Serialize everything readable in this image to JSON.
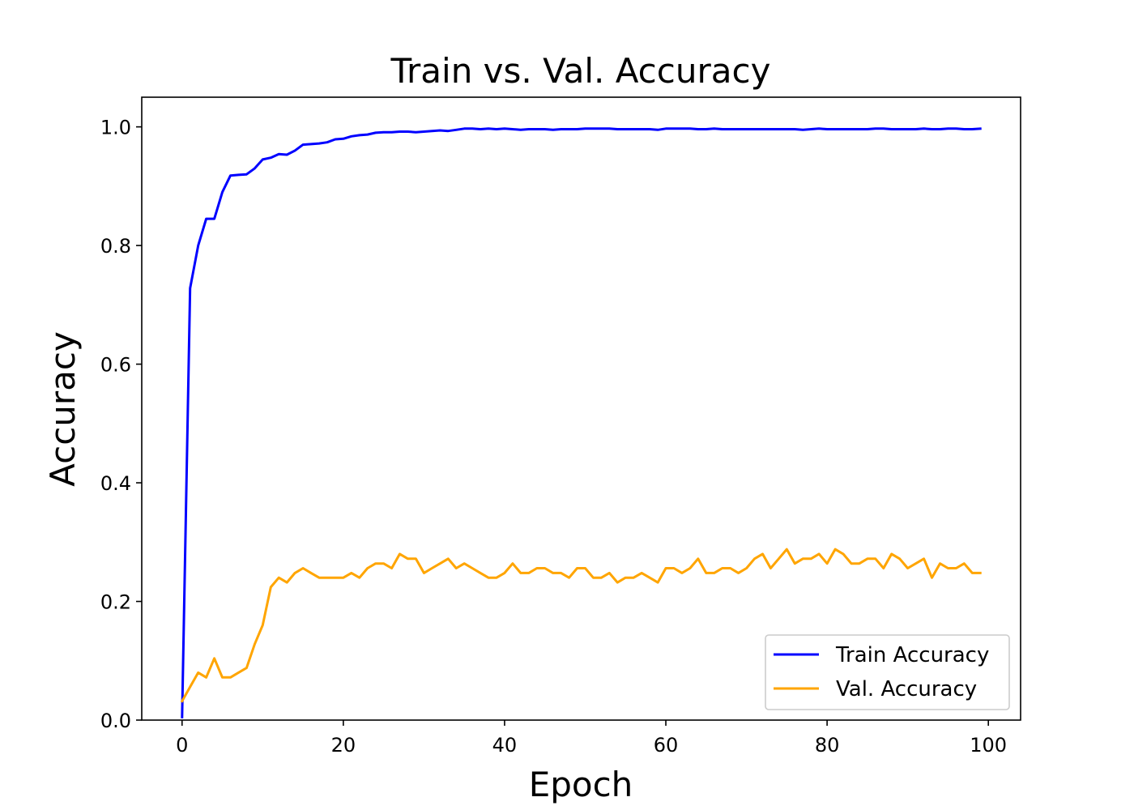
{
  "chart_data": {
    "type": "line",
    "title": "Train vs. Val. Accuracy",
    "xlabel": "Epoch",
    "ylabel": "Accuracy",
    "xlim": [
      -5,
      104
    ],
    "ylim": [
      0,
      1.05
    ],
    "xticks": [
      0,
      20,
      40,
      60,
      80,
      100
    ],
    "xtick_labels": [
      "0",
      "20",
      "40",
      "60",
      "80",
      "100"
    ],
    "yticks": [
      0.0,
      0.2,
      0.4,
      0.6,
      0.8,
      1.0
    ],
    "ytick_labels": [
      "0.0",
      "0.2",
      "0.4",
      "0.6",
      "0.8",
      "1.0"
    ],
    "grid": false,
    "legend_position": "lower-right",
    "x": [
      0,
      1,
      2,
      3,
      4,
      5,
      6,
      7,
      8,
      9,
      10,
      11,
      12,
      13,
      14,
      15,
      16,
      17,
      18,
      19,
      20,
      21,
      22,
      23,
      24,
      25,
      26,
      27,
      28,
      29,
      30,
      31,
      32,
      33,
      34,
      35,
      36,
      37,
      38,
      39,
      40,
      41,
      42,
      43,
      44,
      45,
      46,
      47,
      48,
      49,
      50,
      51,
      52,
      53,
      54,
      55,
      56,
      57,
      58,
      59,
      60,
      61,
      62,
      63,
      64,
      65,
      66,
      67,
      68,
      69,
      70,
      71,
      72,
      73,
      74,
      75,
      76,
      77,
      78,
      79,
      80,
      81,
      82,
      83,
      84,
      85,
      86,
      87,
      88,
      89,
      90,
      91,
      92,
      93,
      94,
      95,
      96,
      97,
      98,
      99
    ],
    "series": [
      {
        "name": "Train Accuracy",
        "color": "#0000ff",
        "values": [
          0.005,
          0.728,
          0.8,
          0.845,
          0.845,
          0.89,
          0.918,
          0.919,
          0.92,
          0.93,
          0.945,
          0.948,
          0.954,
          0.953,
          0.96,
          0.97,
          0.971,
          0.972,
          0.974,
          0.979,
          0.98,
          0.984,
          0.986,
          0.987,
          0.99,
          0.991,
          0.991,
          0.992,
          0.992,
          0.991,
          0.992,
          0.993,
          0.994,
          0.993,
          0.995,
          0.997,
          0.997,
          0.996,
          0.997,
          0.996,
          0.997,
          0.996,
          0.995,
          0.996,
          0.996,
          0.996,
          0.995,
          0.996,
          0.996,
          0.996,
          0.997,
          0.997,
          0.997,
          0.997,
          0.996,
          0.996,
          0.996,
          0.996,
          0.996,
          0.995,
          0.997,
          0.997,
          0.997,
          0.997,
          0.996,
          0.996,
          0.997,
          0.996,
          0.996,
          0.996,
          0.996,
          0.996,
          0.996,
          0.996,
          0.996,
          0.996,
          0.996,
          0.995,
          0.996,
          0.997,
          0.996,
          0.996,
          0.996,
          0.996,
          0.996,
          0.996,
          0.997,
          0.997,
          0.996,
          0.996,
          0.996,
          0.996,
          0.997,
          0.996,
          0.996,
          0.997,
          0.997,
          0.996,
          0.996,
          0.997
        ]
      },
      {
        "name": "Val. Accuracy",
        "color": "#ffa500",
        "values": [
          0.032,
          0.056,
          0.08,
          0.072,
          0.104,
          0.072,
          0.072,
          0.08,
          0.088,
          0.128,
          0.16,
          0.224,
          0.24,
          0.232,
          0.248,
          0.256,
          0.248,
          0.24,
          0.24,
          0.24,
          0.24,
          0.248,
          0.24,
          0.256,
          0.264,
          0.264,
          0.256,
          0.28,
          0.272,
          0.272,
          0.248,
          0.256,
          0.264,
          0.272,
          0.256,
          0.264,
          0.256,
          0.248,
          0.24,
          0.24,
          0.248,
          0.264,
          0.248,
          0.248,
          0.256,
          0.256,
          0.248,
          0.248,
          0.24,
          0.256,
          0.256,
          0.24,
          0.24,
          0.248,
          0.232,
          0.24,
          0.24,
          0.248,
          0.24,
          0.232,
          0.256,
          0.256,
          0.248,
          0.256,
          0.272,
          0.248,
          0.248,
          0.256,
          0.256,
          0.248,
          0.256,
          0.272,
          0.28,
          0.256,
          0.272,
          0.288,
          0.264,
          0.272,
          0.272,
          0.28,
          0.264,
          0.288,
          0.28,
          0.264,
          0.264,
          0.272,
          0.272,
          0.256,
          0.28,
          0.272,
          0.256,
          0.264,
          0.272,
          0.24,
          0.264,
          0.256,
          0.256,
          0.264,
          0.248,
          0.248
        ]
      }
    ]
  }
}
